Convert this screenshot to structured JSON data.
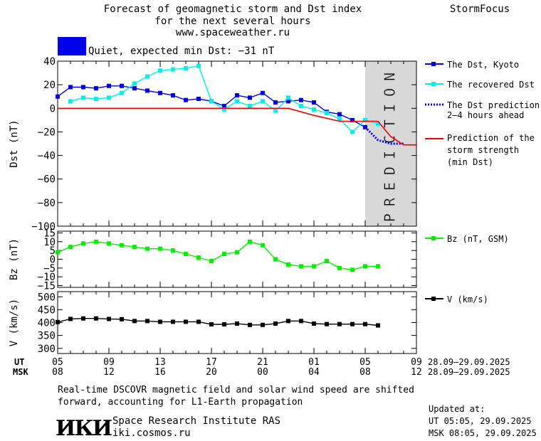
{
  "header": {
    "title_line1": "Forecast of geomagnetic storm and Dst index",
    "title_line2": "for the next several hours",
    "url": "www.spaceweather.ru",
    "brand": "StormFocus",
    "status_text": "Quiet, expected min Dst: −31 nT",
    "status_color": "#0000ee"
  },
  "legend": {
    "dst_kyoto": "The Dst, Kyoto",
    "recovered": "The recovered Dst",
    "prediction_line1": "The Dst prediction",
    "prediction_line2": "2–4 hours ahead",
    "storm_line1": "Prediction of the",
    "storm_line2": "storm strength",
    "storm_line3": "(min Dst)",
    "bz": "Bz (nT, GSM)",
    "v": "V (km/s)"
  },
  "x_axis": {
    "ut_label": "UT",
    "msk_label": "MSK",
    "ut_ticks": [
      "05",
      "09",
      "13",
      "17",
      "21",
      "01",
      "05",
      "09"
    ],
    "msk_ticks": [
      "08",
      "12",
      "16",
      "20",
      "00",
      "04",
      "08",
      "12"
    ],
    "ut_range": "28.09–29.09.2025",
    "msk_range": "28.09–29.09.2025"
  },
  "footer": {
    "note_line1": "Real-time DSCOVR magnetic field and solar wind speed are shifted",
    "note_line2": "forward, accounting for L1-Earth propagation",
    "institute": "Space Research Institute RAS",
    "site": "iki.cosmos.ru",
    "logo_text": "ИКИ",
    "updated_label": "Updated at:",
    "updated_ut": "UT   05:05, 29.09.2025",
    "updated_msk": "MSK 08:05, 29.09.2025"
  },
  "chart_data": [
    {
      "type": "line",
      "title": "Forecast of geomagnetic storm and Dst index",
      "ylabel": "Dst (nT)",
      "x_unit": "hours UT from 05:00 28.09.2025",
      "xlim": [
        0,
        28
      ],
      "ylim": [
        -100,
        40
      ],
      "yticks": [
        40,
        20,
        0,
        -20,
        -40,
        -60,
        -80,
        -100
      ],
      "prediction_band": {
        "x_start": 24,
        "x_end": 28,
        "label": "PREDICTION"
      },
      "series": [
        {
          "name": "The Dst, Kyoto",
          "color": "#0000dd",
          "x": [
            0,
            1,
            2,
            3,
            4,
            5,
            6,
            7,
            8,
            9,
            10,
            11,
            12,
            13,
            14,
            15,
            16,
            17,
            18,
            19,
            20,
            21,
            22,
            23,
            24
          ],
          "y": [
            10,
            18,
            18,
            17,
            19,
            19,
            17,
            15,
            13,
            11,
            7,
            8,
            6,
            2,
            11,
            9,
            13,
            5,
            6,
            7,
            5,
            -3,
            -5,
            -10,
            -16
          ]
        },
        {
          "name": "The recovered Dst",
          "color": "#00eeee",
          "x": [
            1,
            2,
            3,
            4,
            5,
            6,
            7,
            8,
            9,
            10,
            11,
            12,
            13,
            14,
            15,
            16,
            17,
            18,
            19,
            20,
            21,
            22,
            23,
            24,
            25
          ],
          "y": [
            6,
            9,
            8,
            9,
            13,
            21,
            27,
            32,
            33,
            34,
            36,
            6,
            -1,
            6,
            2,
            6,
            -2,
            9,
            2,
            -1,
            -4,
            -9,
            -20,
            -10,
            -13
          ]
        },
        {
          "name": "The Dst prediction 2–4 hours ahead",
          "color": "#0000dd",
          "x": [
            24,
            25,
            26,
            27
          ],
          "y": [
            -16,
            -27,
            -30,
            -30
          ]
        },
        {
          "name": "Prediction of the storm strength (min Dst)",
          "color": "#ee0000",
          "x": [
            0,
            18,
            20,
            22,
            23,
            24,
            25,
            26,
            27,
            28
          ],
          "y": [
            0,
            0,
            -6,
            -11,
            -11,
            -11,
            -11,
            -24,
            -31,
            -31
          ]
        }
      ]
    },
    {
      "type": "line",
      "ylabel": "Bz (nT)",
      "xlim": [
        0,
        28
      ],
      "ylim": [
        -16,
        16
      ],
      "yticks": [
        15,
        10,
        5,
        0,
        -5,
        -10,
        -15
      ],
      "series": [
        {
          "name": "Bz (nT, GSM)",
          "color": "#00ee00",
          "x": [
            0,
            1,
            2,
            3,
            4,
            5,
            6,
            7,
            8,
            9,
            10,
            11,
            12,
            13,
            14,
            15,
            16,
            17,
            18,
            19,
            20,
            21,
            22,
            23,
            24,
            25
          ],
          "y": [
            4,
            7,
            9,
            10,
            9,
            8,
            7,
            6,
            6,
            5,
            3,
            1,
            -1,
            3,
            4,
            10,
            8,
            0,
            -3,
            -4,
            -4,
            -1,
            -5,
            -6,
            -4,
            -4
          ]
        }
      ]
    },
    {
      "type": "line",
      "ylabel": "V (km/s)",
      "xlim": [
        0,
        28
      ],
      "ylim": [
        280,
        520
      ],
      "yticks": [
        500,
        450,
        400,
        350,
        300
      ],
      "series": [
        {
          "name": "V (km/s)",
          "color": "#000000",
          "x": [
            0,
            1,
            2,
            3,
            4,
            5,
            6,
            7,
            8,
            9,
            10,
            11,
            12,
            13,
            14,
            15,
            16,
            17,
            18,
            19,
            20,
            21,
            22,
            23,
            24,
            25
          ],
          "y": [
            402,
            414,
            416,
            416,
            414,
            413,
            406,
            406,
            403,
            403,
            403,
            403,
            393,
            393,
            396,
            391,
            391,
            396,
            406,
            406,
            396,
            394,
            394,
            394,
            394,
            389
          ]
        }
      ]
    }
  ]
}
